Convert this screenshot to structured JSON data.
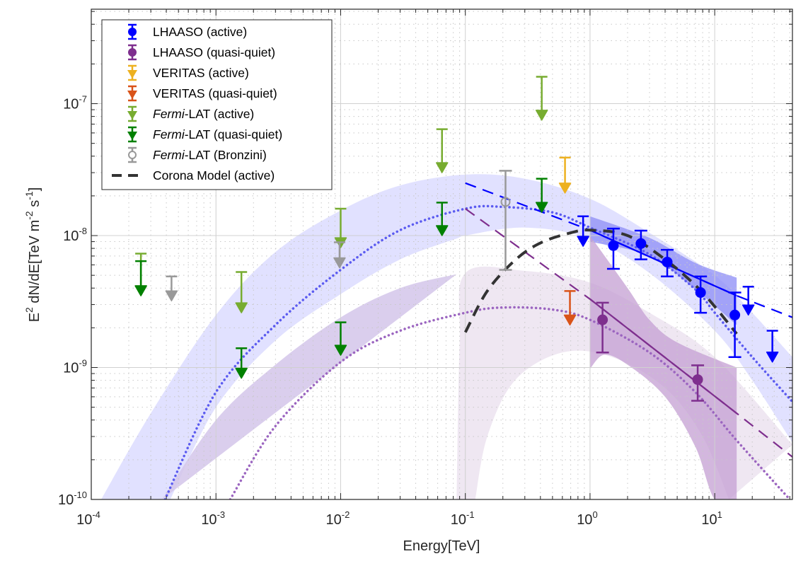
{
  "chart_data": {
    "type": "scatter",
    "title": "",
    "xlabel": "Energy[TeV]",
    "ylabel_parts": {
      "base": "E",
      "sup1": "2",
      "mid": " dN/dE[TeV m",
      "sup2": "-2",
      "mid2": " s",
      "sup3": "-1",
      "end": "]"
    },
    "ylabel": "E^2 dN/dE[TeV m^-2 s^-1]",
    "xscale": "log",
    "yscale": "log",
    "xlim": [
      0.0001,
      42
    ],
    "ylim": [
      1e-10,
      5.2e-07
    ],
    "grid": true,
    "minor_grid": true,
    "legend_position": "top-left",
    "x_ticks": [
      {
        "value": 0.0001,
        "base": "10",
        "exp": "-4"
      },
      {
        "value": 0.001,
        "base": "10",
        "exp": "-3"
      },
      {
        "value": 0.01,
        "base": "10",
        "exp": "-2"
      },
      {
        "value": 0.1,
        "base": "10",
        "exp": "-1"
      },
      {
        "value": 1,
        "base": "10",
        "exp": "0"
      },
      {
        "value": 10,
        "base": "10",
        "exp": "1"
      }
    ],
    "y_ticks": [
      {
        "value": 1e-10,
        "base": "10",
        "exp": "-10"
      },
      {
        "value": 1e-09,
        "base": "10",
        "exp": "-9"
      },
      {
        "value": 1e-08,
        "base": "10",
        "exp": "-8"
      },
      {
        "value": 1e-07,
        "base": "10",
        "exp": "-7"
      }
    ],
    "legend": [
      {
        "label": "LHAASO (active)",
        "italic_prefix": "",
        "color": "#0000ff",
        "marker": "circle-errorbar"
      },
      {
        "label": "LHAASO (quasi-quiet)",
        "italic_prefix": "",
        "color": "#7e2f8e",
        "marker": "circle-errorbar"
      },
      {
        "label": "VERITAS (active)",
        "italic_prefix": "",
        "color": "#edb120",
        "marker": "upper-limit"
      },
      {
        "label": "VERITAS (quasi-quiet)",
        "italic_prefix": "",
        "color": "#d95319",
        "marker": "upper-limit"
      },
      {
        "label": "-LAT (active)",
        "italic_prefix": "Fermi",
        "color": "#77ac30",
        "marker": "upper-limit"
      },
      {
        "label": "-LAT (quasi-quiet)",
        "italic_prefix": "Fermi",
        "color": "#008000",
        "marker": "upper-limit"
      },
      {
        "label": "-LAT (Bronzini)",
        "italic_prefix": "Fermi",
        "color": "#999999",
        "marker": "open-circle-errorbar"
      },
      {
        "label": "Corona Model (active)",
        "italic_prefix": "",
        "color": "#333333",
        "marker": "dashed-line"
      }
    ],
    "series": [
      {
        "name": "LHAASO (active)",
        "color": "#0000ff",
        "points": [
          {
            "x": 1.54,
            "y": 8.4e-09,
            "ylo": 5.6e-09,
            "yhi": 1.13e-08
          },
          {
            "x": 2.56,
            "y": 8.7e-09,
            "ylo": 6.6e-09,
            "yhi": 1.09e-08
          },
          {
            "x": 4.16,
            "y": 6.3e-09,
            "ylo": 4.9e-09,
            "yhi": 7.8e-09
          },
          {
            "x": 7.7,
            "y": 3.7e-09,
            "ylo": 2.6e-09,
            "yhi": 4.9e-09
          },
          {
            "x": 14.5,
            "y": 2.5e-09,
            "ylo": 1.2e-09,
            "yhi": 3.7e-09
          }
        ],
        "upper_limits": [
          {
            "x": 0.88,
            "y": 8.3e-09,
            "cap": 1.4e-08
          },
          {
            "x": 18.6,
            "y": 2.5e-09,
            "cap": 4.1e-09
          },
          {
            "x": 29,
            "y": 1.1e-09,
            "cap": 1.9e-09
          }
        ]
      },
      {
        "name": "LHAASO (quasi-quiet)",
        "color": "#7e2f8e",
        "points": [
          {
            "x": 1.26,
            "y": 2.3e-09,
            "ylo": 1.3e-09,
            "yhi": 3.1e-09
          },
          {
            "x": 7.3,
            "y": 8.1e-10,
            "ylo": 5.6e-10,
            "yhi": 1.04e-09
          }
        ],
        "upper_limits": []
      },
      {
        "name": "VERITAS (active)",
        "color": "#edb120",
        "points": [],
        "upper_limits": [
          {
            "x": 0.63,
            "y": 2.1e-08,
            "cap": 3.9e-08
          }
        ]
      },
      {
        "name": "VERITAS (quasi-quiet)",
        "color": "#d95319",
        "points": [],
        "upper_limits": [
          {
            "x": 0.69,
            "y": 2.1e-09,
            "cap": 3.8e-09
          }
        ]
      },
      {
        "name": "Fermi-LAT (active)",
        "color": "#77ac30",
        "points": [],
        "upper_limits": [
          {
            "x": 0.00025,
            "y": 3.5e-09,
            "cap": 7.3e-09
          },
          {
            "x": 0.0016,
            "y": 2.6e-09,
            "cap": 5.3e-09
          },
          {
            "x": 0.01,
            "y": 8.1e-09,
            "cap": 1.6e-08
          },
          {
            "x": 0.065,
            "y": 3e-08,
            "cap": 6.4e-08
          },
          {
            "x": 0.41,
            "y": 7.5e-08,
            "cap": 1.6e-07
          }
        ]
      },
      {
        "name": "Fermi-LAT (quasi-quiet)",
        "color": "#008000",
        "points": [],
        "upper_limits": [
          {
            "x": 0.00025,
            "y": 3.5e-09,
            "cap": 6.4e-09
          },
          {
            "x": 0.0016,
            "y": 8.3e-10,
            "cap": 1.4e-09
          },
          {
            "x": 0.01,
            "y": 1.24e-09,
            "cap": 2.2e-09
          },
          {
            "x": 0.065,
            "y": 1e-08,
            "cap": 1.78e-08
          },
          {
            "x": 0.41,
            "y": 1.5e-08,
            "cap": 2.7e-08
          }
        ]
      },
      {
        "name": "Fermi-LAT (Bronzini)",
        "color": "#999999",
        "points": [
          {
            "x": 0.21,
            "y": 1.8e-08,
            "ylo": 5.5e-09,
            "yhi": 3.1e-08
          }
        ],
        "upper_limits": [
          {
            "x": 0.00044,
            "y": 3.2e-09,
            "cap": 4.9e-09
          },
          {
            "x": 0.0098,
            "y": 5.7e-09,
            "cap": 8.9e-09
          }
        ]
      }
    ],
    "bands": [
      {
        "name": "Active model band",
        "color": "#dcdcff",
        "upper": [
          [
            0.00012,
            1e-10
          ],
          [
            0.0003,
            4.5e-10
          ],
          [
            0.001,
            2.5e-09
          ],
          [
            0.003,
            7.5e-09
          ],
          [
            0.01,
            1.55e-08
          ],
          [
            0.03,
            2.4e-08
          ],
          [
            0.1,
            2.9e-08
          ],
          [
            0.3,
            2.7e-08
          ],
          [
            1,
            1.9e-08
          ],
          [
            3,
            1.05e-08
          ],
          [
            10,
            5e-09
          ],
          [
            20,
            2.6e-09
          ],
          [
            42,
            1.2e-09
          ]
        ],
        "lower": [
          [
            0.00043,
            1e-10
          ],
          [
            0.001,
            5e-10
          ],
          [
            0.003,
            1.6e-09
          ],
          [
            0.01,
            3.6e-09
          ],
          [
            0.03,
            6.6e-09
          ],
          [
            0.085,
            9.5e-09
          ],
          [
            0.1,
            1e-08
          ],
          [
            0.3,
            1.15e-08
          ],
          [
            1,
            9.5e-09
          ],
          [
            3,
            5.2e-09
          ],
          [
            10,
            1.9e-09
          ],
          [
            20,
            8e-10
          ],
          [
            42,
            2.7e-10
          ]
        ]
      },
      {
        "name": "Quasi-quiet model band",
        "color": "#d3c6ea",
        "upper": [
          [
            0.00037,
            1e-10
          ],
          [
            0.001,
            4e-10
          ],
          [
            0.003,
            1.05e-09
          ],
          [
            0.01,
            2.4e-09
          ],
          [
            0.03,
            4e-09
          ],
          [
            0.085,
            5.1e-09
          ]
        ],
        "lower": [
          [
            0.085,
            1e-10
          ],
          [
            0.00037,
            1e-10
          ]
        ]
      },
      {
        "name": "Quasi-quiet model band (high-energy)",
        "color": "#ece3f0",
        "upper": [
          [
            0.085,
            1e-10
          ],
          [
            0.09,
            1.5e-09
          ],
          [
            0.1,
            5.2e-09
          ],
          [
            0.3,
            5.4e-09
          ],
          [
            1,
            4.4e-09
          ],
          [
            3,
            2.6e-09
          ],
          [
            10,
            1.2e-09
          ],
          [
            42,
            2.6e-10
          ]
        ],
        "lower": [
          [
            0.12,
            1e-10
          ],
          [
            0.15,
            3e-10
          ],
          [
            0.25,
            8e-10
          ],
          [
            0.6,
            1.3e-09
          ],
          [
            1.5,
            1.2e-09
          ],
          [
            4,
            7e-10
          ],
          [
            8,
            3e-10
          ],
          [
            13,
            1e-10
          ]
        ]
      },
      {
        "name": "LHAASO active fit band",
        "color": "#8c8cf5",
        "upper": [
          [
            1,
            1.4e-08
          ],
          [
            3,
            9.6e-09
          ],
          [
            7,
            6.2e-09
          ],
          [
            15,
            4.8e-09
          ]
        ],
        "lower": [
          [
            1,
            9e-09
          ],
          [
            3,
            7e-09
          ],
          [
            7,
            3.9e-09
          ],
          [
            15,
            2.1e-09
          ]
        ]
      },
      {
        "name": "LHAASO quasi-quiet fit band",
        "color": "#c49fd3",
        "upper": [
          [
            1,
            1e-08
          ],
          [
            2,
            4e-09
          ],
          [
            3,
            2.3e-09
          ],
          [
            5,
            1.55e-09
          ],
          [
            15,
            1e-09
          ]
        ],
        "lower": [
          [
            1,
            9.8e-10
          ],
          [
            1.3,
            1.25e-09
          ],
          [
            2,
            1.05e-09
          ],
          [
            4,
            6e-10
          ],
          [
            7,
            2.5e-10
          ],
          [
            10,
            1e-10
          ],
          [
            15,
            1e-10
          ]
        ]
      }
    ],
    "lines": [
      {
        "name": "Active model (dotted)",
        "color": "#5b5bf0",
        "style": "dotted",
        "points": [
          [
            0.00039,
            1e-10
          ],
          [
            0.001,
            6.5e-10
          ],
          [
            0.003,
            2.1e-09
          ],
          [
            0.01,
            5.5e-09
          ],
          [
            0.03,
            1.1e-08
          ],
          [
            0.1,
            1.6e-08
          ],
          [
            0.2,
            1.65e-08
          ],
          [
            0.5,
            1.5e-08
          ],
          [
            1,
            1.15e-08
          ],
          [
            3,
            7.2e-09
          ],
          [
            7,
            3.9e-09
          ],
          [
            10,
            2.6e-09
          ],
          [
            20,
            1.2e-09
          ],
          [
            42,
            5.5e-10
          ]
        ]
      },
      {
        "name": "Quasi-quiet model (dotted)",
        "color": "#9b65c0",
        "style": "dotted",
        "points": [
          [
            0.0013,
            1e-10
          ],
          [
            0.003,
            3.6e-10
          ],
          [
            0.01,
            1.1e-09
          ],
          [
            0.03,
            1.9e-09
          ],
          [
            0.1,
            2.6e-09
          ],
          [
            0.2,
            2.85e-09
          ],
          [
            0.5,
            2.75e-09
          ],
          [
            1,
            2.3e-09
          ],
          [
            3,
            1.3e-09
          ],
          [
            7,
            6.5e-10
          ],
          [
            15,
            2.8e-10
          ],
          [
            40,
            1e-10
          ]
        ]
      },
      {
        "name": "LHAASO active fit (dashed)",
        "color": "#0000ff",
        "style": "dashed",
        "points": [
          [
            0.1,
            2.5e-08
          ],
          [
            1,
            1.1e-08
          ],
          [
            15,
            3.5e-09
          ],
          [
            42,
            2.4e-09
          ]
        ],
        "solid_range": [
          1,
          15
        ]
      },
      {
        "name": "LHAASO quasi-quiet fit (dashed)",
        "color": "#7e2f8e",
        "style": "dashed",
        "points": [
          [
            0.1,
            1.6e-08
          ],
          [
            1,
            3.3e-09
          ],
          [
            15,
            4.5e-10
          ],
          [
            42,
            2.1e-10
          ]
        ],
        "solid_range": [
          1,
          15
        ]
      },
      {
        "name": "Corona Model (active)",
        "color": "#333333",
        "style": "dashed",
        "points": [
          [
            0.1,
            1.85e-09
          ],
          [
            0.15,
            3.8e-09
          ],
          [
            0.25,
            6.5e-09
          ],
          [
            0.4,
            8.8e-09
          ],
          [
            0.7,
            1.05e-08
          ],
          [
            1,
            1.1e-08
          ],
          [
            2,
            1e-08
          ],
          [
            4,
            6.6e-09
          ],
          [
            7,
            4.2e-09
          ],
          [
            10,
            2.9e-09
          ],
          [
            15,
            1.8e-09
          ]
        ]
      }
    ]
  }
}
